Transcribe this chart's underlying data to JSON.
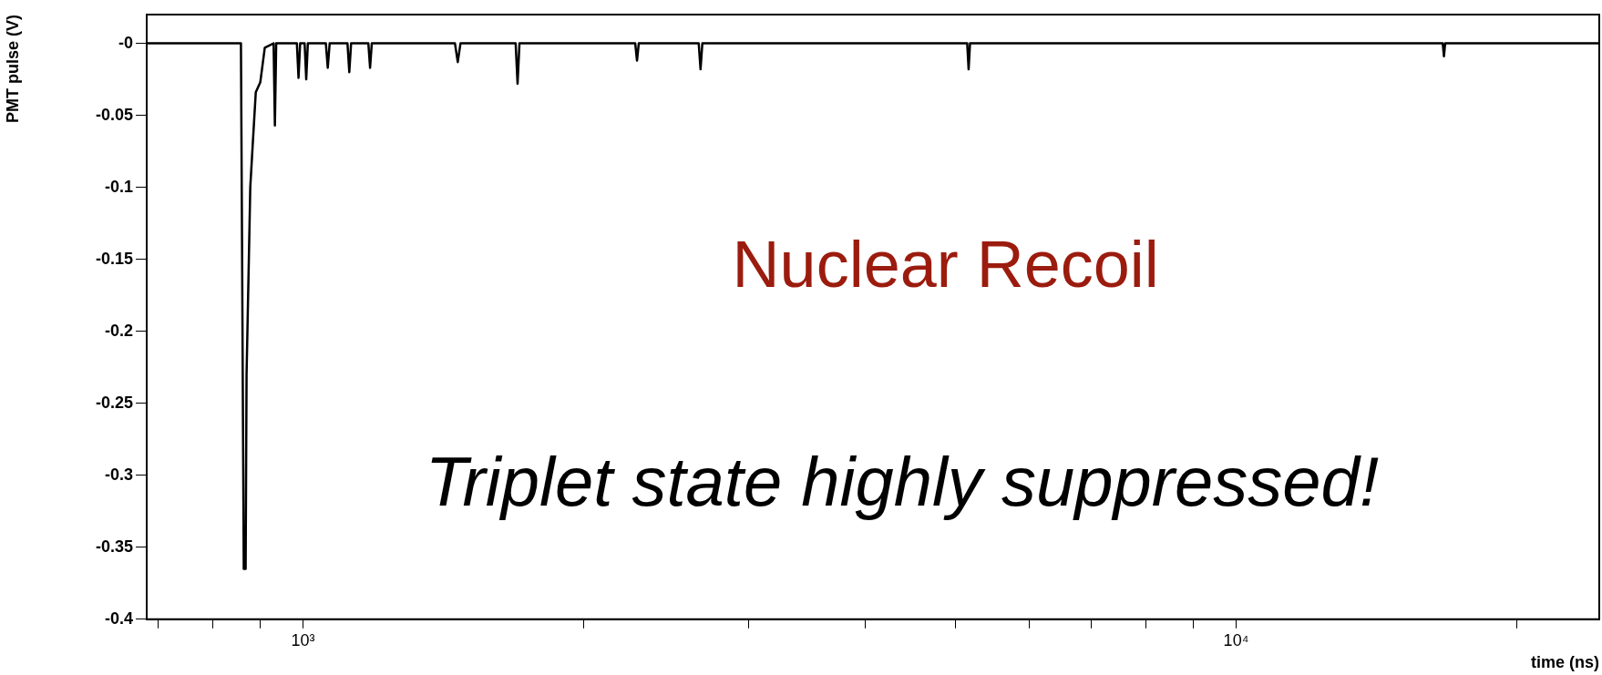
{
  "chart_data": {
    "type": "line",
    "xlabel": "time (ns)",
    "ylabel": "PMT pulse (V)",
    "annotations": [
      "Nuclear Recoil",
      "Triplet state highly suppressed!"
    ],
    "log": "x",
    "grid": false,
    "color": "#000000",
    "x": [
      680,
      858,
      860,
      864,
      868,
      870,
      874,
      878,
      883,
      890,
      900,
      910,
      930,
      933,
      936,
      985,
      989,
      993,
      1004,
      1008,
      1012,
      1058,
      1063,
      1068,
      1116,
      1121,
      1126,
      1175,
      1180,
      1185,
      1455,
      1465,
      1475,
      1690,
      1698,
      1706,
      2270,
      2280,
      2290,
      2655,
      2667,
      2679,
      5150,
      5168,
      5186,
      16650,
      16700,
      16750,
      24500
    ],
    "values": [
      0,
      0,
      -0.118,
      -0.365,
      -0.365,
      -0.23,
      -0.165,
      -0.1,
      -0.072,
      -0.034,
      -0.027,
      -0.003,
      0,
      -0.057,
      0,
      0,
      -0.024,
      0,
      0,
      -0.025,
      0,
      0,
      -0.017,
      0,
      0,
      -0.02,
      0,
      0,
      -0.017,
      0,
      0,
      -0.013,
      0,
      0,
      -0.028,
      0,
      0,
      -0.012,
      0,
      0,
      -0.018,
      0,
      0,
      -0.018,
      0,
      0,
      -0.009,
      0,
      0
    ],
    "xlim": [
      680,
      24500
    ],
    "ylim": [
      -0.4,
      0.02
    ],
    "xticks": [
      {
        "value": 700,
        "label": null
      },
      {
        "value": 800,
        "label": null
      },
      {
        "value": 900,
        "label": null
      },
      {
        "value": 1000,
        "label": "10³"
      },
      {
        "value": 2000,
        "label": null
      },
      {
        "value": 3000,
        "label": null
      },
      {
        "value": 4000,
        "label": null
      },
      {
        "value": 5000,
        "label": null
      },
      {
        "value": 6000,
        "label": null
      },
      {
        "value": 7000,
        "label": null
      },
      {
        "value": 8000,
        "label": null
      },
      {
        "value": 9000,
        "label": null
      },
      {
        "value": 10000,
        "label": "10⁴"
      },
      {
        "value": 20000,
        "label": null
      }
    ],
    "yticks": [
      {
        "value": 0,
        "label": "-0"
      },
      -0.05,
      -0.1,
      -0.15,
      -0.2,
      -0.25,
      -0.3,
      -0.35,
      -0.4
    ]
  }
}
